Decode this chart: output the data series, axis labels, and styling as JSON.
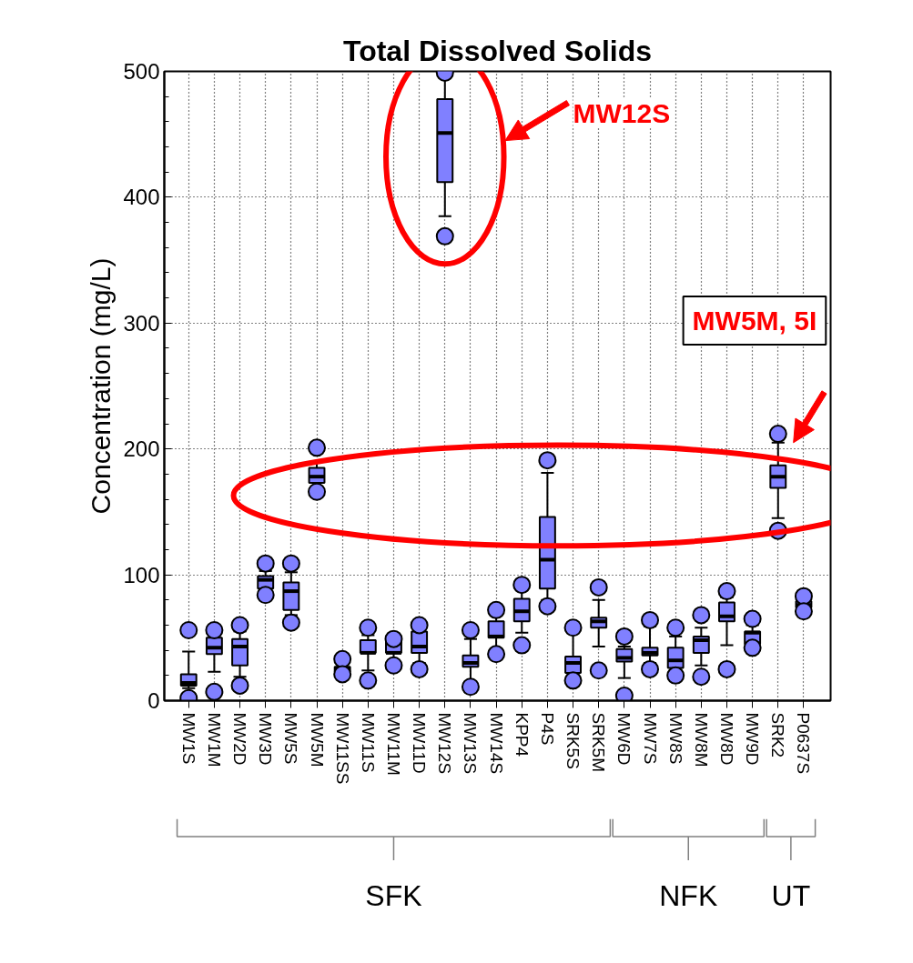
{
  "chart_data": {
    "type": "box",
    "title": "Total Dissolved Solids",
    "ylabel": "Concentration (mg/L)",
    "categories": [
      "MW1S",
      "MW1M",
      "MW2D",
      "MW3D",
      "MW5S",
      "MW5M",
      "MW11SS",
      "MW11S",
      "MW11M",
      "MW11D",
      "MW12S",
      "MW13S",
      "MW14S",
      "KPP4",
      "P4S",
      "SRK5S",
      "SRK5M",
      "MW6D",
      "MW7S",
      "MW8S",
      "MW8M",
      "MW8D",
      "MW9D",
      "SRK2",
      "P0637S"
    ],
    "color": "#8080ff",
    "boxes": [
      {
        "low": 10,
        "q1": 12,
        "median": 14,
        "q3": 21,
        "high": 39,
        "outliers": [
          56,
          2
        ]
      },
      {
        "low": 23,
        "q1": 37,
        "median": 42,
        "q3": 50,
        "high": 52,
        "outliers": [
          56,
          7
        ]
      },
      {
        "low": 19,
        "q1": 28,
        "median": 43,
        "q3": 49,
        "high": 55,
        "outliers": [
          60,
          12
        ]
      },
      {
        "low": 87,
        "q1": 89,
        "median": 96,
        "q3": 99,
        "high": 103,
        "outliers": [
          109,
          84
        ]
      },
      {
        "low": 68,
        "q1": 72,
        "median": 87,
        "q3": 94,
        "high": 102,
        "outliers": [
          109,
          62
        ]
      },
      {
        "low": 170,
        "q1": 173,
        "median": 178,
        "q3": 185,
        "high": 190,
        "outliers": [
          201,
          166
        ]
      },
      {
        "low": 22,
        "q1": 23,
        "median": 25,
        "q3": 27,
        "high": 30,
        "outliers": [
          33,
          21
        ]
      },
      {
        "low": 24,
        "q1": 38,
        "median": 38,
        "q3": 48,
        "high": 52,
        "outliers": [
          58,
          16
        ]
      },
      {
        "low": 30,
        "q1": 38,
        "median": 38,
        "q3": 47,
        "high": 48,
        "outliers": [
          49,
          28
        ]
      },
      {
        "low": 30,
        "q1": 38,
        "median": 43,
        "q3": 55,
        "high": 57,
        "outliers": [
          60,
          25
        ]
      },
      {
        "low": 385,
        "q1": 412,
        "median": 451,
        "q3": 478,
        "high": 495,
        "outliers": [
          499,
          369
        ]
      },
      {
        "low": 15,
        "q1": 27,
        "median": 30,
        "q3": 36,
        "high": 49,
        "outliers": [
          56,
          11
        ]
      },
      {
        "low": 40,
        "q1": 50,
        "median": 51,
        "q3": 63,
        "high": 68,
        "outliers": [
          72,
          37
        ]
      },
      {
        "low": 54,
        "q1": 63,
        "median": 71,
        "q3": 81,
        "high": 88,
        "outliers": [
          92,
          44
        ]
      },
      {
        "low": 80,
        "q1": 89,
        "median": 112,
        "q3": 146,
        "high": 181,
        "outliers": [
          191,
          75
        ]
      },
      {
        "low": 18,
        "q1": 22,
        "median": 30,
        "q3": 35,
        "high": 55,
        "outliers": [
          58,
          16
        ]
      },
      {
        "low": 43,
        "q1": 58,
        "median": 63,
        "q3": 66,
        "high": 80,
        "outliers": [
          90,
          24
        ]
      },
      {
        "low": 18,
        "q1": 31,
        "median": 34,
        "q3": 41,
        "high": 43,
        "outliers": [
          51,
          4
        ]
      },
      {
        "low": 30,
        "q1": 36,
        "median": 38,
        "q3": 42,
        "high": 59,
        "outliers": [
          64,
          25
        ]
      },
      {
        "low": 22,
        "q1": 26,
        "median": 32,
        "q3": 42,
        "high": 51,
        "outliers": [
          58,
          20
        ]
      },
      {
        "low": 28,
        "q1": 38,
        "median": 48,
        "q3": 51,
        "high": 58,
        "outliers": [
          68,
          19
        ]
      },
      {
        "low": 44,
        "q1": 63,
        "median": 67,
        "q3": 78,
        "high": 82,
        "outliers": [
          87,
          25
        ]
      },
      {
        "low": 43,
        "q1": 45,
        "median": 54,
        "q3": 55,
        "high": 60,
        "outliers": [
          65,
          42
        ]
      },
      {
        "low": 145,
        "q1": 169,
        "median": 178,
        "q3": 187,
        "high": 205,
        "outliers": [
          212,
          135
        ]
      },
      {
        "low": 73,
        "q1": 74,
        "median": 76,
        "q3": 79,
        "high": 81,
        "outliers": [
          83,
          71
        ]
      }
    ],
    "ylim": [
      0,
      500
    ],
    "yticks": [
      0,
      100,
      200,
      300,
      400,
      500
    ],
    "grid": true,
    "annotations": [
      "MW12S",
      "MW5M, 5I",
      "SFK",
      "NFK",
      "UT"
    ]
  }
}
